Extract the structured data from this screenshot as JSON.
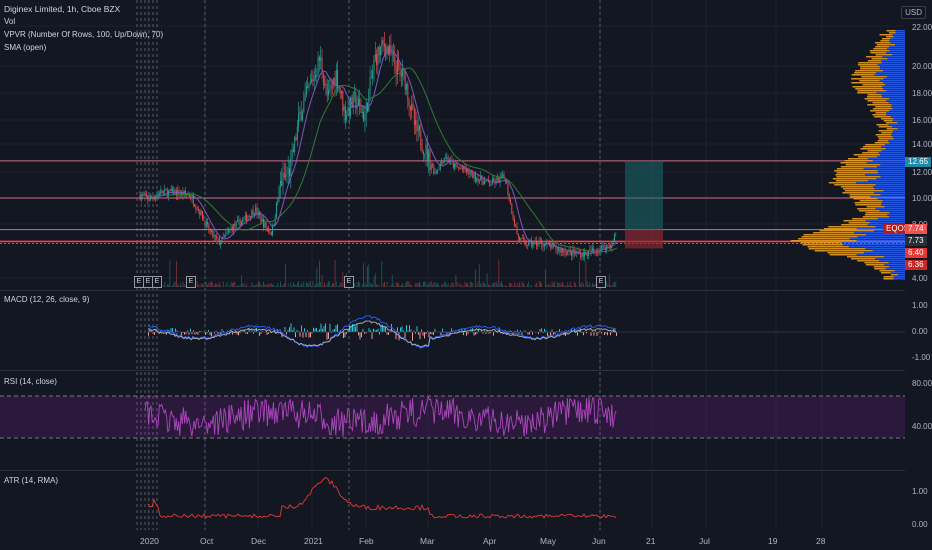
{
  "header": {
    "symbol": "Diginex Limited, 1h, Cboe BZX",
    "vol": "Vol",
    "vpvr": "VPVR (Number Of Rows, 100, Up/Down, 70)",
    "sma": "SMA (open)"
  },
  "currency": "USD",
  "price_axis": [
    "22.00",
    "20.00",
    "18.00",
    "16.00",
    "14.00",
    "12.00",
    "10.00",
    "8.00",
    "6.00",
    "4.00"
  ],
  "price_tags": {
    "t1": "12.65",
    "t2": "7.74",
    "t3": "7.73",
    "t4": "6.40",
    "t5": "6.36",
    "eqos": "EQOS"
  },
  "earnings_mark": "E",
  "macd": {
    "title": "MACD (12, 26, close, 9)",
    "axis": [
      "1.00",
      "0.00",
      "-1.00"
    ]
  },
  "rsi": {
    "title": "RSI (14, close)",
    "axis": [
      "80.00",
      "40.00"
    ]
  },
  "atr": {
    "title": "ATR (14, RMA)",
    "axis": [
      "1.00",
      "0.00"
    ]
  },
  "time_axis": [
    "2020",
    "Oct",
    "Dec",
    "2021",
    "Feb",
    "Mar",
    "Apr",
    "May",
    "Jun",
    "21",
    "Jul",
    "19",
    "28"
  ],
  "colors": {
    "bg": "#131722",
    "up": "#26a69a",
    "down": "#ef5350",
    "orange": "#f5a623",
    "blue": "#2962ff",
    "rsi": "#9c27b0",
    "atr": "#e53935",
    "sma": "#2e7d32",
    "hline": "#ff4d6d"
  }
}
